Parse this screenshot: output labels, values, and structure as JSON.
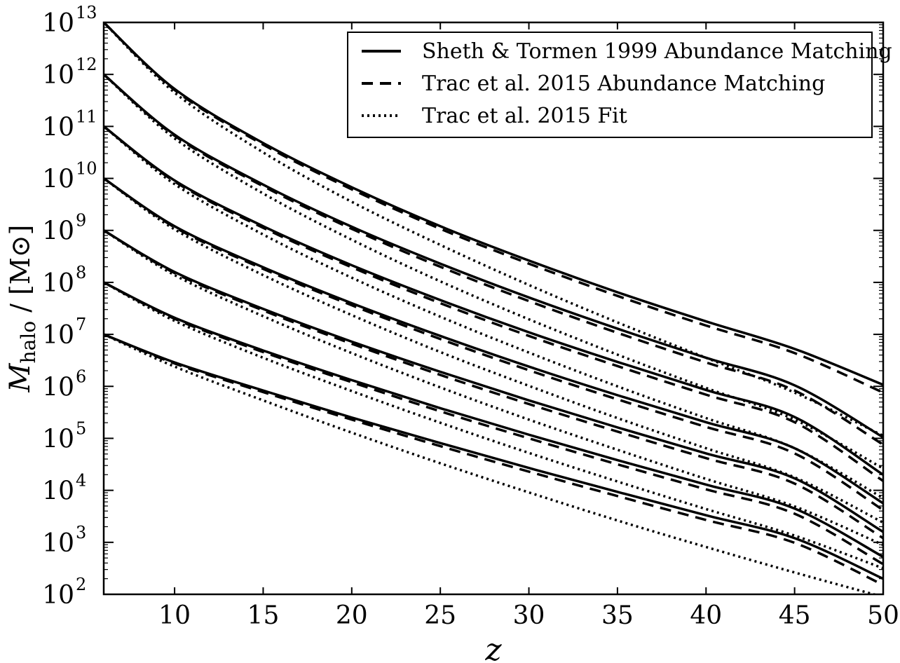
{
  "chart_data": {
    "type": "line",
    "title": "",
    "xlabel": "z",
    "ylabel": {
      "symbol": "M",
      "subscript": "halo",
      "unit": " / [M⊙]"
    },
    "xlim": [
      6,
      50
    ],
    "ylim_log10": [
      2,
      13
    ],
    "yscale": "log",
    "x_ticks": [
      "10",
      "15",
      "20",
      "25",
      "30",
      "35",
      "40",
      "45",
      "50"
    ],
    "x_tick_values": [
      10,
      15,
      20,
      25,
      30,
      35,
      40,
      45,
      50
    ],
    "y_tick_exponents": [
      "2",
      "3",
      "4",
      "5",
      "6",
      "7",
      "8",
      "9",
      "10",
      "11",
      "12",
      "13"
    ],
    "y_tick_base": "10",
    "legend": {
      "position": "top-right",
      "entries": [
        {
          "label": "Sheth & Tormen 1999 Abundance Matching",
          "style": "solid"
        },
        {
          "label": "Trac et al. 2015 Abundance Matching",
          "style": "dashed"
        },
        {
          "label": "Trac et al. 2015 Fit",
          "style": "dotted"
        }
      ]
    },
    "x": [
      6,
      10,
      15,
      20,
      25,
      30,
      35,
      40,
      45,
      50
    ],
    "series": [
      {
        "name": "Sheth & Tormen 1999 Abundance Matching",
        "style": "solid",
        "z6_mass": "1e13",
        "log10_mass": [
          13.0,
          11.72,
          10.68,
          9.83,
          9.08,
          8.42,
          7.81,
          7.25,
          6.72,
          6.03
        ]
      },
      {
        "name": "Trac et al. 2015 Abundance Matching",
        "style": "dashed",
        "z6_mass": "1e13",
        "log10_mass": [
          13.0,
          11.7,
          10.65,
          9.79,
          9.03,
          8.36,
          7.74,
          7.17,
          6.64,
          5.88
        ]
      },
      {
        "name": "Trac et al. 2015 Fit",
        "style": "dotted",
        "z6_mass": "1e13",
        "log10_mass": [
          13.0,
          11.65,
          10.5,
          9.55,
          8.72,
          7.95,
          7.23,
          6.55,
          5.88,
          5.05
        ]
      },
      {
        "name": "Sheth & Tormen 1999 Abundance Matching",
        "style": "solid",
        "z6_mass": "1e12",
        "log10_mass": [
          12.0,
          10.84,
          9.88,
          9.07,
          8.36,
          7.71,
          7.11,
          6.55,
          6.02,
          5.02
        ]
      },
      {
        "name": "Trac et al. 2015 Abundance Matching",
        "style": "dashed",
        "z6_mass": "1e12",
        "log10_mass": [
          12.0,
          10.82,
          9.85,
          9.03,
          8.3,
          7.64,
          7.03,
          6.46,
          5.92,
          4.88
        ]
      },
      {
        "name": "Trac et al. 2015 Fit",
        "style": "dotted",
        "z6_mass": "1e12",
        "log10_mass": [
          12.0,
          10.77,
          9.71,
          8.82,
          8.02,
          7.29,
          6.61,
          5.97,
          5.36,
          4.42
        ]
      },
      {
        "name": "Sheth & Tormen 1999 Abundance Matching",
        "style": "solid",
        "z6_mass": "1e11",
        "log10_mass": [
          11.0,
          9.96,
          9.08,
          8.33,
          7.66,
          7.04,
          6.47,
          5.93,
          5.41,
          4.3
        ]
      },
      {
        "name": "Trac et al. 2015 Abundance Matching",
        "style": "dashed",
        "z6_mass": "1e11",
        "log10_mass": [
          11.0,
          9.94,
          9.05,
          8.29,
          7.6,
          6.97,
          6.39,
          5.84,
          5.31,
          4.18
        ]
      },
      {
        "name": "Trac et al. 2015 Fit",
        "style": "dotted",
        "z6_mass": "1e11",
        "log10_mass": [
          11.0,
          9.89,
          8.92,
          8.09,
          7.34,
          6.65,
          6.0,
          5.39,
          4.81,
          3.85
        ]
      },
      {
        "name": "Sheth & Tormen 1999 Abundance Matching",
        "style": "solid",
        "z6_mass": "1e10",
        "log10_mass": [
          10.0,
          9.08,
          8.29,
          7.6,
          6.97,
          6.38,
          5.83,
          5.31,
          4.81,
          3.75
        ]
      },
      {
        "name": "Trac et al. 2015 Abundance Matching",
        "style": "dashed",
        "z6_mass": "1e10",
        "log10_mass": [
          10.0,
          9.06,
          8.26,
          7.56,
          6.91,
          6.31,
          5.75,
          5.22,
          4.71,
          3.62
        ]
      },
      {
        "name": "Trac et al. 2015 Fit",
        "style": "dotted",
        "z6_mass": "1e10",
        "log10_mass": [
          10.0,
          9.02,
          8.14,
          7.37,
          6.66,
          6.01,
          5.39,
          4.81,
          4.25,
          3.38
        ]
      },
      {
        "name": "Sheth & Tormen 1999 Abundance Matching",
        "style": "solid",
        "z6_mass": "1e9",
        "log10_mass": [
          9.0,
          8.2,
          7.49,
          6.86,
          6.28,
          5.73,
          5.21,
          4.71,
          4.23,
          3.2
        ]
      },
      {
        "name": "Trac et al. 2015 Abundance Matching",
        "style": "dashed",
        "z6_mass": "1e9",
        "log10_mass": [
          9.0,
          8.18,
          7.46,
          6.82,
          6.22,
          5.66,
          5.13,
          4.62,
          4.13,
          3.08
        ]
      },
      {
        "name": "Trac et al. 2015 Fit",
        "style": "dotted",
        "z6_mass": "1e9",
        "log10_mass": [
          9.0,
          8.14,
          7.35,
          6.64,
          5.98,
          5.36,
          4.78,
          4.22,
          3.69,
          2.95
        ]
      },
      {
        "name": "Sheth & Tormen 1999 Abundance Matching",
        "style": "solid",
        "z6_mass": "1e8",
        "log10_mass": [
          8.0,
          7.32,
          6.69,
          6.12,
          5.58,
          5.07,
          4.58,
          4.11,
          3.65,
          2.72
        ]
      },
      {
        "name": "Trac et al. 2015 Abundance Matching",
        "style": "dashed",
        "z6_mass": "1e8",
        "log10_mass": [
          8.0,
          7.3,
          6.66,
          6.08,
          5.52,
          5.0,
          4.5,
          4.02,
          3.55,
          2.58
        ]
      },
      {
        "name": "Trac et al. 2015 Fit",
        "style": "dotted",
        "z6_mass": "1e8",
        "log10_mass": [
          8.0,
          7.26,
          6.55,
          5.91,
          5.3,
          4.72,
          4.17,
          3.64,
          3.13,
          2.5
        ]
      },
      {
        "name": "Sheth & Tormen 1999 Abundance Matching",
        "style": "solid",
        "z6_mass": "1e7",
        "log10_mass": [
          7.0,
          6.46,
          5.92,
          5.4,
          4.91,
          4.43,
          3.97,
          3.52,
          3.08,
          2.3
        ]
      },
      {
        "name": "Trac et al. 2015 Abundance Matching",
        "style": "dashed",
        "z6_mass": "1e7",
        "log10_mass": [
          7.0,
          6.44,
          5.89,
          5.36,
          4.85,
          4.36,
          3.89,
          3.43,
          2.99,
          2.18
        ]
      },
      {
        "name": "Trac et al. 2015 Fit",
        "style": "dotted",
        "z6_mass": "1e7",
        "log10_mass": [
          7.0,
          6.38,
          5.73,
          5.11,
          4.52,
          3.96,
          3.42,
          2.91,
          2.42,
          1.95
        ]
      }
    ]
  }
}
